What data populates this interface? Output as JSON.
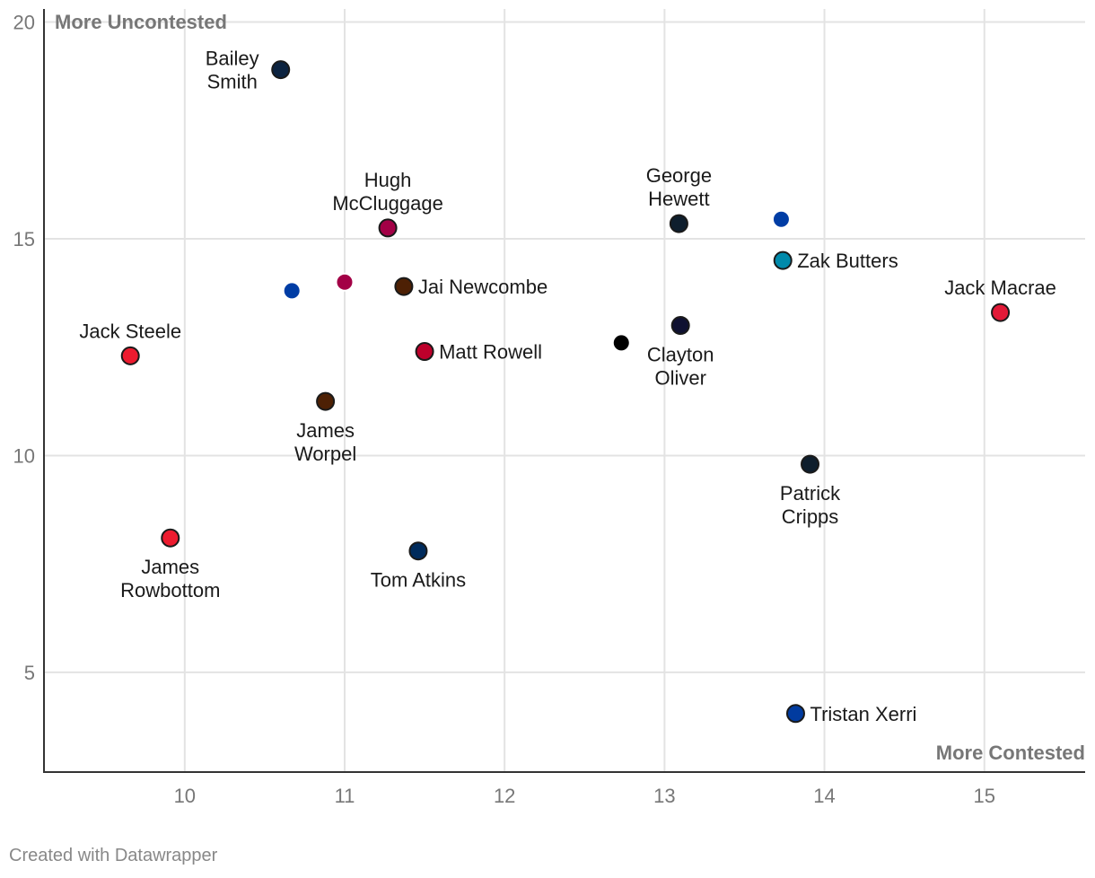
{
  "chart_data": {
    "type": "scatter",
    "title": "",
    "xlabel": "",
    "ylabel": "",
    "xlim": [
      9.12,
      15.63
    ],
    "ylim": [
      2.7,
      20.3
    ],
    "x_ticks": [
      10,
      11,
      12,
      13,
      14,
      15
    ],
    "y_ticks": [
      5,
      10,
      15,
      20
    ],
    "grid": true,
    "annotations": {
      "top_left": "More Uncontested",
      "bottom_right": "More Contested"
    },
    "points": [
      {
        "name": "Bailey Smith",
        "label_lines": [
          "Bailey",
          "Smith"
        ],
        "label_pos": "left",
        "x": 10.6,
        "y": 18.9,
        "color": "#0c2340"
      },
      {
        "name": "Hugh McCluggage",
        "label_lines": [
          "Hugh",
          "McCluggage"
        ],
        "label_pos": "above",
        "x": 11.27,
        "y": 15.25,
        "color": "#a30046"
      },
      {
        "name": "George Hewett",
        "label_lines": [
          "George",
          "Hewett"
        ],
        "label_pos": "above",
        "x": 13.09,
        "y": 15.35,
        "color": "#0e1e2d"
      },
      {
        "name": "",
        "label_lines": [],
        "label_pos": "none",
        "x": 13.73,
        "y": 15.45,
        "color": "#003da5"
      },
      {
        "name": "Zak Butters",
        "label_lines": [
          "Zak Butters"
        ],
        "label_pos": "right",
        "x": 13.74,
        "y": 14.5,
        "color": "#008aab"
      },
      {
        "name": "",
        "label_lines": [],
        "label_pos": "none",
        "x": 10.67,
        "y": 13.8,
        "color": "#003da5"
      },
      {
        "name": "",
        "label_lines": [],
        "label_pos": "none",
        "x": 11.0,
        "y": 14.0,
        "color": "#a30046"
      },
      {
        "name": "Jai Newcombe",
        "label_lines": [
          "Jai Newcombe"
        ],
        "label_pos": "right",
        "x": 11.37,
        "y": 13.9,
        "color": "#4d2004"
      },
      {
        "name": "Jack Macrae",
        "label_lines": [
          "Jack Macrae"
        ],
        "label_pos": "above",
        "x": 15.1,
        "y": 13.3,
        "color": "#e21937"
      },
      {
        "name": "Clayton Oliver",
        "label_lines": [
          "Clayton",
          "Oliver"
        ],
        "label_pos": "below",
        "x": 13.1,
        "y": 13.0,
        "color": "#0f1131"
      },
      {
        "name": "",
        "label_lines": [],
        "label_pos": "none",
        "x": 12.73,
        "y": 12.6,
        "color": "#000000"
      },
      {
        "name": "Matt Rowell",
        "label_lines": [
          "Matt Rowell"
        ],
        "label_pos": "right",
        "x": 11.5,
        "y": 12.4,
        "color": "#bd002b"
      },
      {
        "name": "Jack Steele",
        "label_lines": [
          "Jack Steele"
        ],
        "label_pos": "above",
        "x": 9.66,
        "y": 12.3,
        "color": "#ed1b2f"
      },
      {
        "name": "James Worpel",
        "label_lines": [
          "James",
          "Worpel"
        ],
        "label_pos": "below",
        "x": 10.88,
        "y": 11.25,
        "color": "#4d2004"
      },
      {
        "name": "Patrick Cripps",
        "label_lines": [
          "Patrick",
          "Cripps"
        ],
        "label_pos": "below",
        "x": 13.91,
        "y": 9.8,
        "color": "#0e1e2d"
      },
      {
        "name": "James Rowbottom",
        "label_lines": [
          "James",
          "Rowbottom"
        ],
        "label_pos": "below",
        "x": 9.91,
        "y": 8.1,
        "color": "#ed1b2f"
      },
      {
        "name": "Tom Atkins",
        "label_lines": [
          "Tom Atkins"
        ],
        "label_pos": "below",
        "x": 11.46,
        "y": 7.8,
        "color": "#002b5c"
      },
      {
        "name": "Tristan Xerri",
        "label_lines": [
          "Tristan Xerri"
        ],
        "label_pos": "right",
        "x": 13.82,
        "y": 4.05,
        "color": "#013b9f"
      }
    ]
  },
  "credit": "Created with Datawrapper"
}
